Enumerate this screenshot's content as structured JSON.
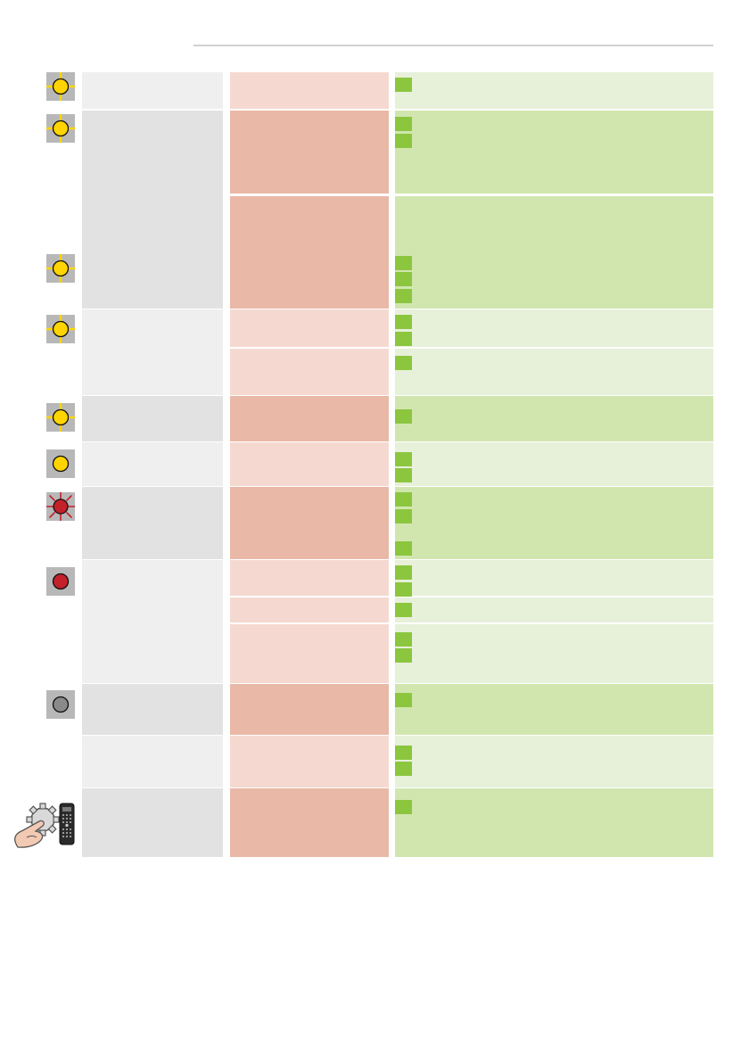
{
  "colors": {
    "rule": "#d0d0d0",
    "col1_light": "#efefef",
    "col1_dark": "#e2e2e2",
    "col2_light": "#f5d9d0",
    "col2_dark": "#eab8a6",
    "col3_light": "#e7f0d9",
    "col3_dark": "#d1e6ae",
    "marker": "#8cc63f",
    "led_yellow": "#ffd400",
    "led_red": "#c3222a",
    "led_grey": "#8a8a8a",
    "icon_bg": "#b8b8b8"
  },
  "rows": [
    {
      "id": "r1",
      "status_icon": "led-yellow-blinking-icon",
      "markers": 1
    },
    {
      "id": "r2",
      "status_icon": "led-yellow-blinking-icon",
      "markers": 2
    },
    {
      "id": "r3",
      "status_icon": "led-yellow-blinking-icon",
      "markers": 3
    },
    {
      "id": "r4",
      "status_icon": "led-yellow-blinking-icon",
      "markers": 2
    },
    {
      "id": "r5",
      "status_icon": "none",
      "markers": 1
    },
    {
      "id": "r6",
      "status_icon": "led-yellow-blinking-icon",
      "markers": 1
    },
    {
      "id": "r7",
      "status_icon": "led-yellow-steady-icon",
      "markers": 2
    },
    {
      "id": "r8",
      "status_icon": "led-red-blinking-icon",
      "markers": 3
    },
    {
      "id": "r9",
      "status_icon": "led-red-steady-icon",
      "markers": 2
    },
    {
      "id": "r10",
      "status_icon": "none",
      "markers": 1
    },
    {
      "id": "r11",
      "status_icon": "none",
      "markers": 2
    },
    {
      "id": "r12",
      "status_icon": "led-grey-off-icon",
      "markers": 1
    },
    {
      "id": "r13",
      "status_icon": "none",
      "markers": 2
    },
    {
      "id": "r14",
      "status_icon": "settings-hand-remote-control-icon",
      "markers": 1
    }
  ]
}
